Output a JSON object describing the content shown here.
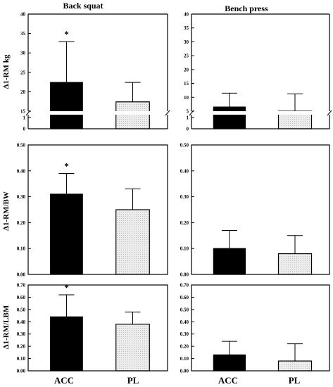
{
  "column_titles": [
    "Back squat",
    "Bench press"
  ],
  "row_ylabels": [
    "Δ1-RM kg",
    "Δ1-RM/BW",
    "Δ1-RM/LBM"
  ],
  "x_categories": [
    "ACC",
    "PL"
  ],
  "colors": {
    "ACC": "#000000",
    "PL": "#e4e4e4",
    "axis": "#000000"
  },
  "significance_marker": "*",
  "chart_data": [
    {
      "type": "bar",
      "title": "Back squat",
      "ylabel": "Δ1-RM kg",
      "categories": [
        "ACC",
        "PL"
      ],
      "values": [
        22.4,
        17.4
      ],
      "error": [
        10.5,
        5.0
      ],
      "significant": [
        true,
        false
      ],
      "broken_axis": true,
      "lower_ticks": [
        "0",
        "1"
      ],
      "upper_ylim": [
        15,
        40
      ],
      "upper_ticks": [
        "15",
        "20",
        "25",
        "30",
        "35",
        "40"
      ]
    },
    {
      "type": "bar",
      "title": "Bench press",
      "ylabel": "",
      "categories": [
        "ACC",
        "PL"
      ],
      "values": [
        6.5,
        5.0
      ],
      "error": [
        5.0,
        6.2
      ],
      "significant": [
        false,
        false
      ],
      "broken_axis": true,
      "lower_ticks": [
        "0",
        "1"
      ],
      "upper_ylim": [
        5,
        40
      ],
      "upper_ticks": [
        "5",
        "10",
        "15",
        "20",
        "25",
        "30",
        "35",
        "40"
      ]
    },
    {
      "type": "bar",
      "title": "",
      "ylabel": "Δ1-RM/BW",
      "categories": [
        "ACC",
        "PL"
      ],
      "values": [
        0.31,
        0.25
      ],
      "error": [
        0.08,
        0.08
      ],
      "significant": [
        true,
        false
      ],
      "ylim": [
        0,
        0.5
      ],
      "ticks": [
        "0.00",
        "0.10",
        "0.20",
        "0.30",
        "0.40",
        "0.50"
      ]
    },
    {
      "type": "bar",
      "title": "",
      "ylabel": "",
      "categories": [
        "ACC",
        "PL"
      ],
      "values": [
        0.1,
        0.08
      ],
      "error": [
        0.07,
        0.07
      ],
      "significant": [
        false,
        false
      ],
      "ylim": [
        0,
        0.5
      ],
      "ticks": [
        "0.00",
        "0.10",
        "0.20",
        "0.30",
        "0.40",
        "0.50"
      ]
    },
    {
      "type": "bar",
      "title": "",
      "ylabel": "Δ1-RM/LBM",
      "categories": [
        "ACC",
        "PL"
      ],
      "values": [
        0.44,
        0.38
      ],
      "error": [
        0.18,
        0.1
      ],
      "significant": [
        true,
        false
      ],
      "ylim": [
        0,
        0.7
      ],
      "ticks": [
        "0.00",
        "0.10",
        "0.20",
        "0.30",
        "0.40",
        "0.50",
        "0.60",
        "0.70"
      ]
    },
    {
      "type": "bar",
      "title": "",
      "ylabel": "",
      "categories": [
        "ACC",
        "PL"
      ],
      "values": [
        0.13,
        0.08
      ],
      "error": [
        0.11,
        0.14
      ],
      "significant": [
        false,
        false
      ],
      "ylim": [
        0,
        0.7
      ],
      "ticks": [
        "0.00",
        "0.10",
        "0.20",
        "0.30",
        "0.40",
        "0.50",
        "0.60",
        "0.70"
      ]
    }
  ]
}
